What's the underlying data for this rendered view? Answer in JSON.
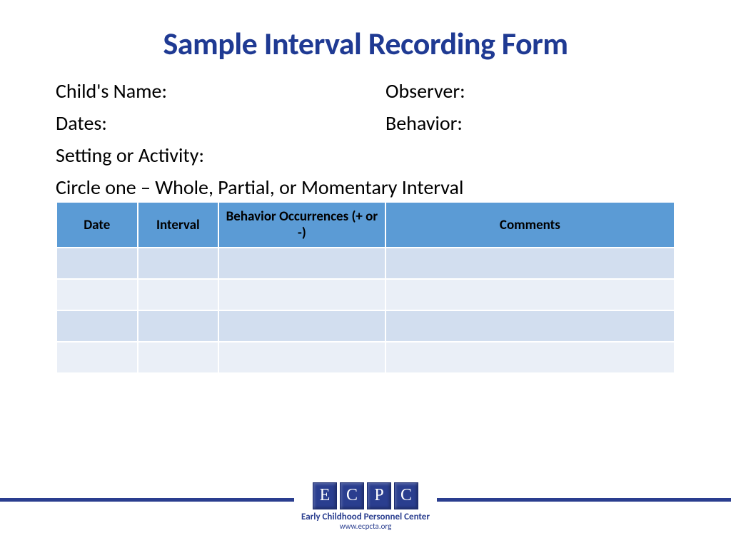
{
  "title": {
    "text": "Sample Interval Recording Form",
    "color": "#1f3a93",
    "fontsize": 44
  },
  "fields": {
    "fontsize": 28,
    "child_name": "Child's Name:",
    "observer": "Observer:",
    "dates": "Dates:",
    "behavior": "Behavior:",
    "setting": "Setting or Activity:",
    "instruction": "Circle one – Whole, Partial, or Momentary Interval"
  },
  "table": {
    "header_bg": "#5b9bd5",
    "header_fontsize": 19,
    "row_even_bg": "#d2deef",
    "row_odd_bg": "#eaeff7",
    "columns": [
      {
        "label": "Date",
        "width": "13%"
      },
      {
        "label": "Interval",
        "width": "13%"
      },
      {
        "label": "Behavior Occurrences (+ or -)",
        "width": "27%"
      },
      {
        "label": "Comments",
        "width": "47%"
      }
    ],
    "row_count": 4
  },
  "footer": {
    "rule_color": "#2a3e8f",
    "logo_letters": [
      "E",
      "C",
      "P",
      "C"
    ],
    "org_name": "Early Childhood Personnel Center",
    "url": "www.ecpcta.org",
    "letter_bg": "#2a3e8f"
  }
}
